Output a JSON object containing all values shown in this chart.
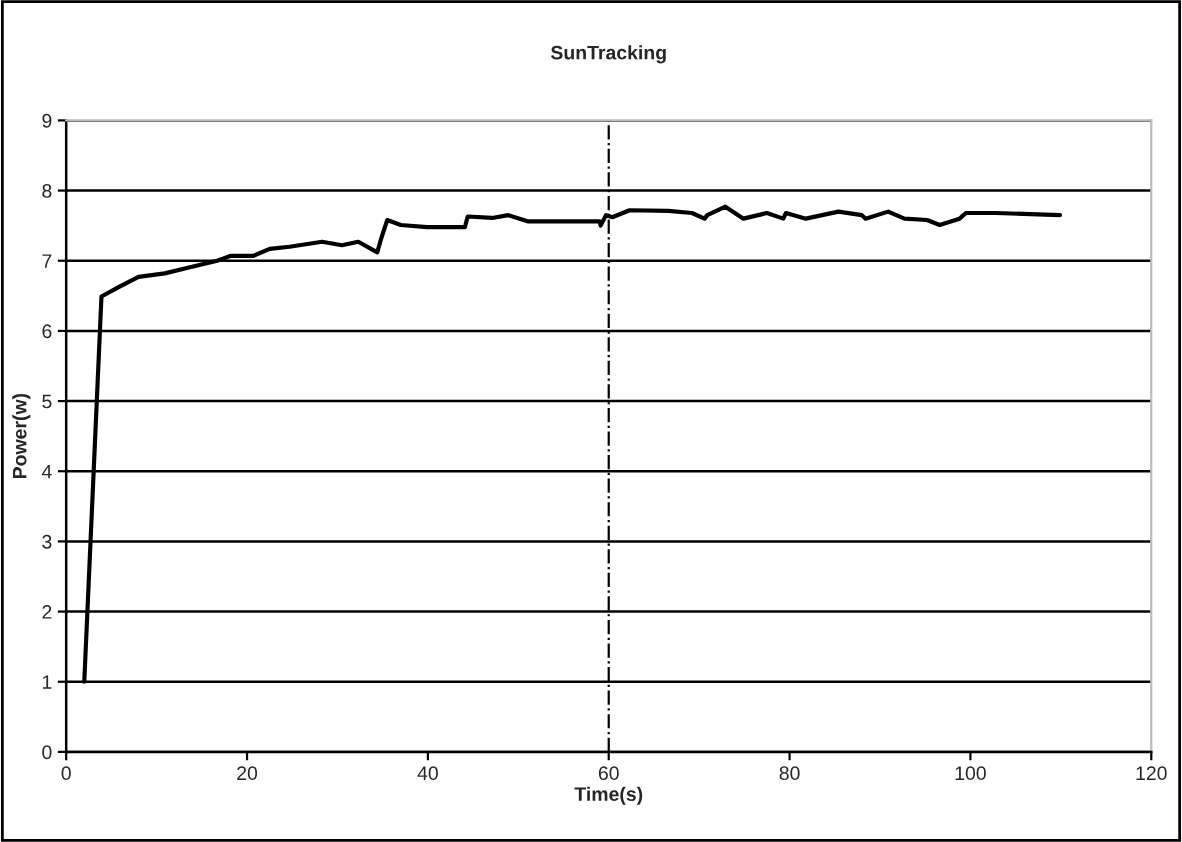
{
  "chart_data": {
    "type": "line",
    "title": "SunTracking",
    "xlabel": "Time(s)",
    "ylabel": "Power(w)",
    "xlim": [
      0,
      120
    ],
    "xticks": [
      0,
      20,
      40,
      60,
      80,
      100,
      120
    ],
    "ylim": [
      0,
      9
    ],
    "yticks": [
      0,
      1,
      2,
      3,
      4,
      5,
      6,
      7,
      8,
      9
    ],
    "grid": "y",
    "marker": "none",
    "line_style": "solid",
    "series": [
      {
        "color": "#000000",
        "x": [
          2.0,
          3.9,
          5.9,
          8.0,
          10.9,
          13.8,
          16.7,
          18.2,
          20.7,
          22.5,
          24.7,
          28.3,
          30.5,
          32.3,
          34.4,
          34.8,
          35.5,
          37.0,
          39.9,
          44.1,
          44.4,
          47.1,
          48.9,
          51.1,
          59.0,
          59.1,
          59.7,
          60.4,
          62.3,
          66.6,
          69.2,
          70.6,
          70.9,
          72.9,
          74.9,
          77.5,
          79.3,
          79.6,
          81.8,
          85.4,
          88.0,
          88.4,
          90.9,
          92.7,
          95.2,
          96.6,
          98.8,
          99.5,
          102.8,
          109.9
        ],
        "values": [
          1.0,
          6.49,
          6.63,
          6.77,
          6.82,
          6.91,
          7.0,
          7.07,
          7.07,
          7.17,
          7.2,
          7.27,
          7.22,
          7.27,
          7.12,
          7.3,
          7.58,
          7.51,
          7.48,
          7.48,
          7.63,
          7.61,
          7.65,
          7.56,
          7.56,
          7.5,
          7.65,
          7.62,
          7.72,
          7.71,
          7.68,
          7.6,
          7.65,
          7.77,
          7.6,
          7.68,
          7.6,
          7.68,
          7.6,
          7.7,
          7.65,
          7.6,
          7.7,
          7.6,
          7.58,
          7.51,
          7.6,
          7.68,
          7.68,
          7.65
        ]
      }
    ],
    "ref_lines": [
      {
        "axis": "x",
        "value": 60,
        "color": "#000000",
        "line_style": "dashdot"
      }
    ]
  }
}
